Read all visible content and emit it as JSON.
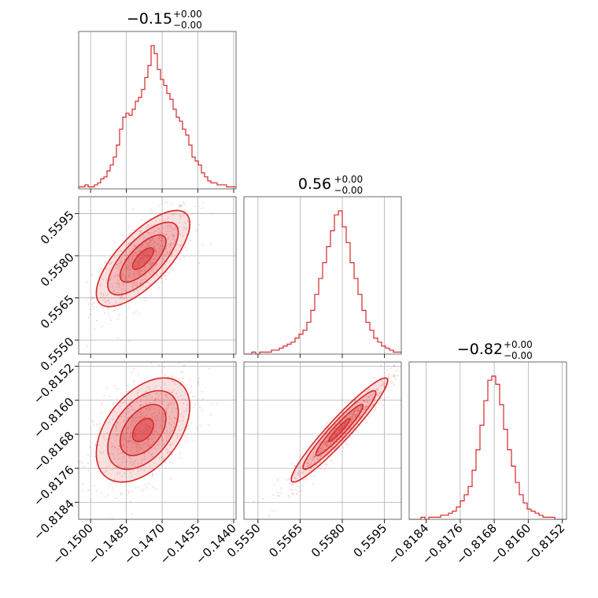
{
  "chart_data": {
    "type": "corner",
    "color": "#d62728",
    "grid": true,
    "parameters": [
      {
        "title_value": "−0.15",
        "err_plus": "+0.00",
        "err_minus": "−0.00",
        "range": [
          -0.1505,
          -0.1439
        ],
        "ticks": [
          -0.15,
          -0.1485,
          -0.147,
          -0.1455,
          -0.144
        ],
        "tick_labels": [
          "−0.1500",
          "−0.1485",
          "−0.1470",
          "−0.1455",
          "−0.1440"
        ],
        "hist_counts": [
          1,
          1,
          2,
          1,
          1,
          2,
          3,
          5,
          6,
          9,
          12,
          16,
          22,
          30,
          36,
          38,
          37,
          40,
          44,
          46,
          50,
          56,
          62,
          72,
          68,
          60,
          55,
          52,
          48,
          45,
          40,
          36,
          34,
          30,
          27,
          22,
          16,
          14,
          12,
          8,
          6,
          4,
          3,
          3,
          2,
          2,
          2,
          1,
          1,
          1
        ]
      },
      {
        "title_value": "0.56",
        "err_plus": "+0.00",
        "err_minus": "−0.00",
        "range": [
          0.5545,
          0.5601
        ],
        "ticks": [
          0.555,
          0.5565,
          0.558,
          0.5595
        ],
        "tick_labels": [
          "0.5550",
          "0.5565",
          "0.5580",
          "0.5595"
        ],
        "hist_counts": [
          0,
          0,
          1,
          0,
          1,
          1,
          1,
          2,
          2,
          3,
          4,
          5,
          6,
          8,
          10,
          12,
          16,
          22,
          30,
          38,
          46,
          54,
          62,
          70,
          72,
          64,
          56,
          46,
          38,
          30,
          22,
          16,
          12,
          8,
          6,
          4,
          3,
          2,
          1,
          1
        ]
      },
      {
        "title_value": "−0.82",
        "err_plus": "+0.00",
        "err_minus": "−0.00",
        "range": [
          -0.8188,
          -0.8151
        ],
        "ticks": [
          -0.8184,
          -0.8176,
          -0.8168,
          -0.816,
          -0.8152
        ],
        "tick_labels": [
          "−0.8184",
          "−0.8176",
          "−0.8168",
          "−0.8160",
          "−0.8152"
        ],
        "hist_counts": [
          0,
          0,
          0,
          1,
          0,
          1,
          1,
          1,
          2,
          2,
          3,
          4,
          6,
          9,
          12,
          16,
          24,
          34,
          46,
          58,
          68,
          70,
          66,
          56,
          44,
          34,
          26,
          18,
          12,
          8,
          5,
          4,
          3,
          2,
          1,
          1,
          1,
          0,
          0,
          0
        ]
      }
    ],
    "pairs": [
      {
        "row": 1,
        "col": 0,
        "center": [
          -0.1478,
          0.5579
        ],
        "spread": [
          0.0008,
          0.0007
        ],
        "rho": 0.72,
        "n": 700
      },
      {
        "row": 2,
        "col": 0,
        "center": [
          -0.1478,
          -0.8167
        ],
        "spread": [
          0.0008,
          0.0005
        ],
        "rho": 0.45,
        "n": 700
      },
      {
        "row": 2,
        "col": 1,
        "center": [
          0.5579,
          -0.8167
        ],
        "spread": [
          0.0007,
          0.0005
        ],
        "rho": 0.95,
        "n": 700
      }
    ]
  }
}
